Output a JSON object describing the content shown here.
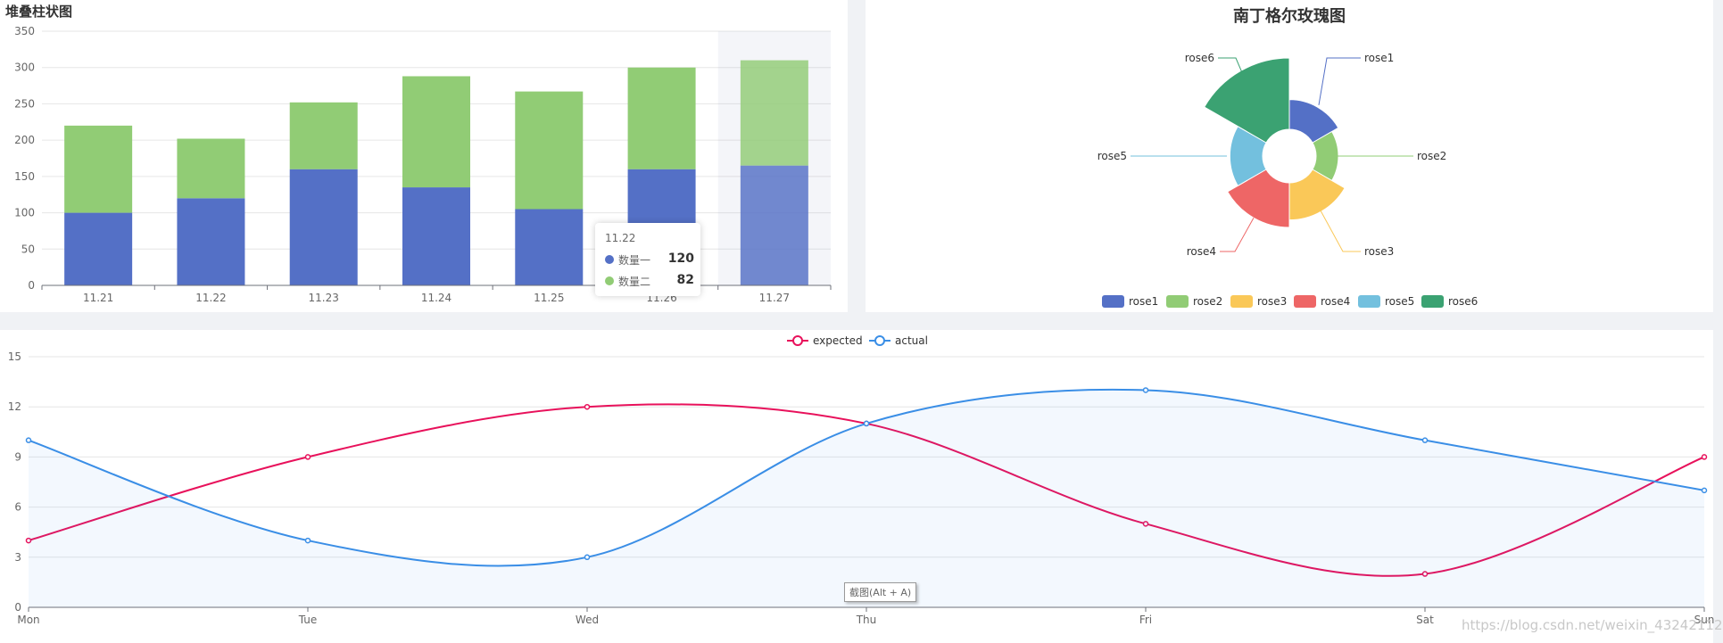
{
  "bar_panel": {
    "title": "堆叠柱状图"
  },
  "rose_panel": {
    "title": "南丁格尔玫瑰图"
  },
  "tooltip": {
    "title": "11.22",
    "rows": [
      {
        "name": "数量一",
        "value": "120",
        "color": "#5470c6"
      },
      {
        "name": "数量二",
        "value": "82",
        "color": "#91cc75"
      }
    ]
  },
  "screenshot_hint": "截图(Alt + A)",
  "watermark": "https://blog.csdn.net/weixin_43242112",
  "chart_data": [
    {
      "type": "bar",
      "stacked": true,
      "title": "堆叠柱状图",
      "categories": [
        "11.21",
        "11.22",
        "11.23",
        "11.24",
        "11.25",
        "11.26",
        "11.27"
      ],
      "series": [
        {
          "values": [
            100,
            120,
            160,
            135,
            105,
            160,
            165
          ],
          "color": "#5470c6"
        },
        {
          "values": [
            120,
            82,
            92,
            153,
            162,
            140,
            145
          ],
          "color": "#91cc75"
        }
      ],
      "ylim": [
        0,
        350
      ],
      "yticks": [
        0,
        50,
        100,
        150,
        200,
        250,
        300,
        350
      ],
      "grid": true,
      "highlighted_category": "11.27"
    },
    {
      "type": "pie",
      "rose_type": "radius",
      "title": "南丁格尔玫瑰图",
      "labels": [
        "rose1",
        "rose2",
        "rose3",
        "rose4",
        "rose5",
        "rose6"
      ],
      "values": [
        20,
        15,
        25,
        30,
        22,
        48
      ],
      "colors": [
        "#5470c6",
        "#91cc75",
        "#fac858",
        "#ee6666",
        "#73c0de",
        "#3ba272"
      ],
      "legend_position": "bottom"
    },
    {
      "type": "line",
      "smooth": true,
      "categories": [
        "Mon",
        "Tue",
        "Wed",
        "Thu",
        "Fri",
        "Sat",
        "Sun"
      ],
      "series": [
        {
          "name": "expected",
          "values": [
            4,
            9,
            12,
            11,
            5,
            2,
            9
          ],
          "color": "#e8115b"
        },
        {
          "name": "actual",
          "values": [
            10,
            4,
            3,
            11,
            13,
            10,
            7
          ],
          "color": "#3a8ee6",
          "area": true
        }
      ],
      "ylim": [
        0,
        15
      ],
      "yticks": [
        0,
        3,
        6,
        9,
        12,
        15
      ],
      "grid": true,
      "legend_position": "top"
    }
  ]
}
